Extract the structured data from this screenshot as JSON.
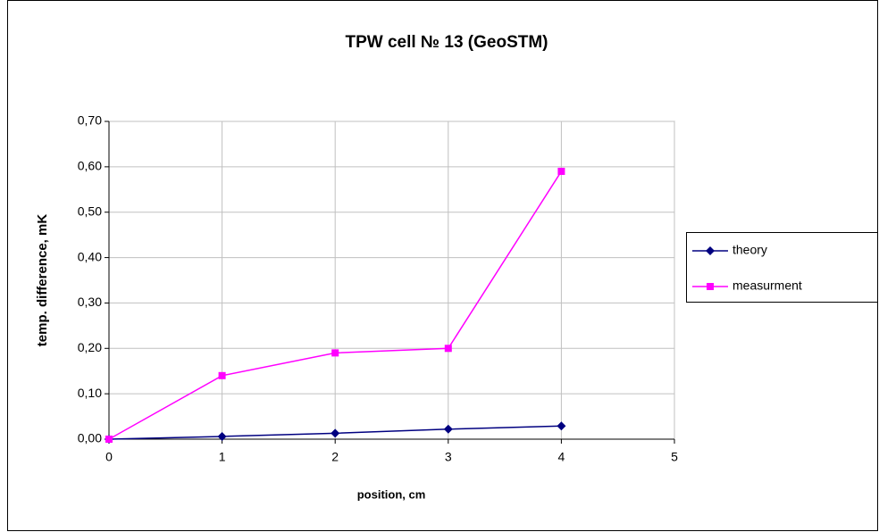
{
  "chart_data": {
    "type": "line",
    "title": "TPW cell № 13 (GeoSTM)",
    "x_label": "position, cm",
    "y_label": "temp. difference, mK",
    "x": [
      0,
      1,
      2,
      3,
      4
    ],
    "series": [
      {
        "name": "theory",
        "color": "#000080",
        "marker": "diamond",
        "values": [
          0,
          0.006,
          0.013,
          0.022,
          0.029
        ]
      },
      {
        "name": "measurment",
        "color": "#ff00ff",
        "marker": "square",
        "values": [
          0,
          0.14,
          0.19,
          0.2,
          0.59
        ]
      }
    ],
    "xlim": [
      0,
      5
    ],
    "xticks": [
      0,
      1,
      2,
      3,
      4,
      5
    ],
    "ylim": [
      0,
      0.7
    ],
    "yticks": [
      {
        "value": 0,
        "label": "0,00"
      },
      {
        "value": 0.1,
        "label": "0,10"
      },
      {
        "value": 0.2,
        "label": "0,20"
      },
      {
        "value": 0.3,
        "label": "0,30"
      },
      {
        "value": 0.4,
        "label": "0,40"
      },
      {
        "value": 0.5,
        "label": "0,50"
      },
      {
        "value": 0.6,
        "label": "0,60"
      },
      {
        "value": 0.7,
        "label": "0,70"
      }
    ],
    "grid": true,
    "legend": "right"
  }
}
